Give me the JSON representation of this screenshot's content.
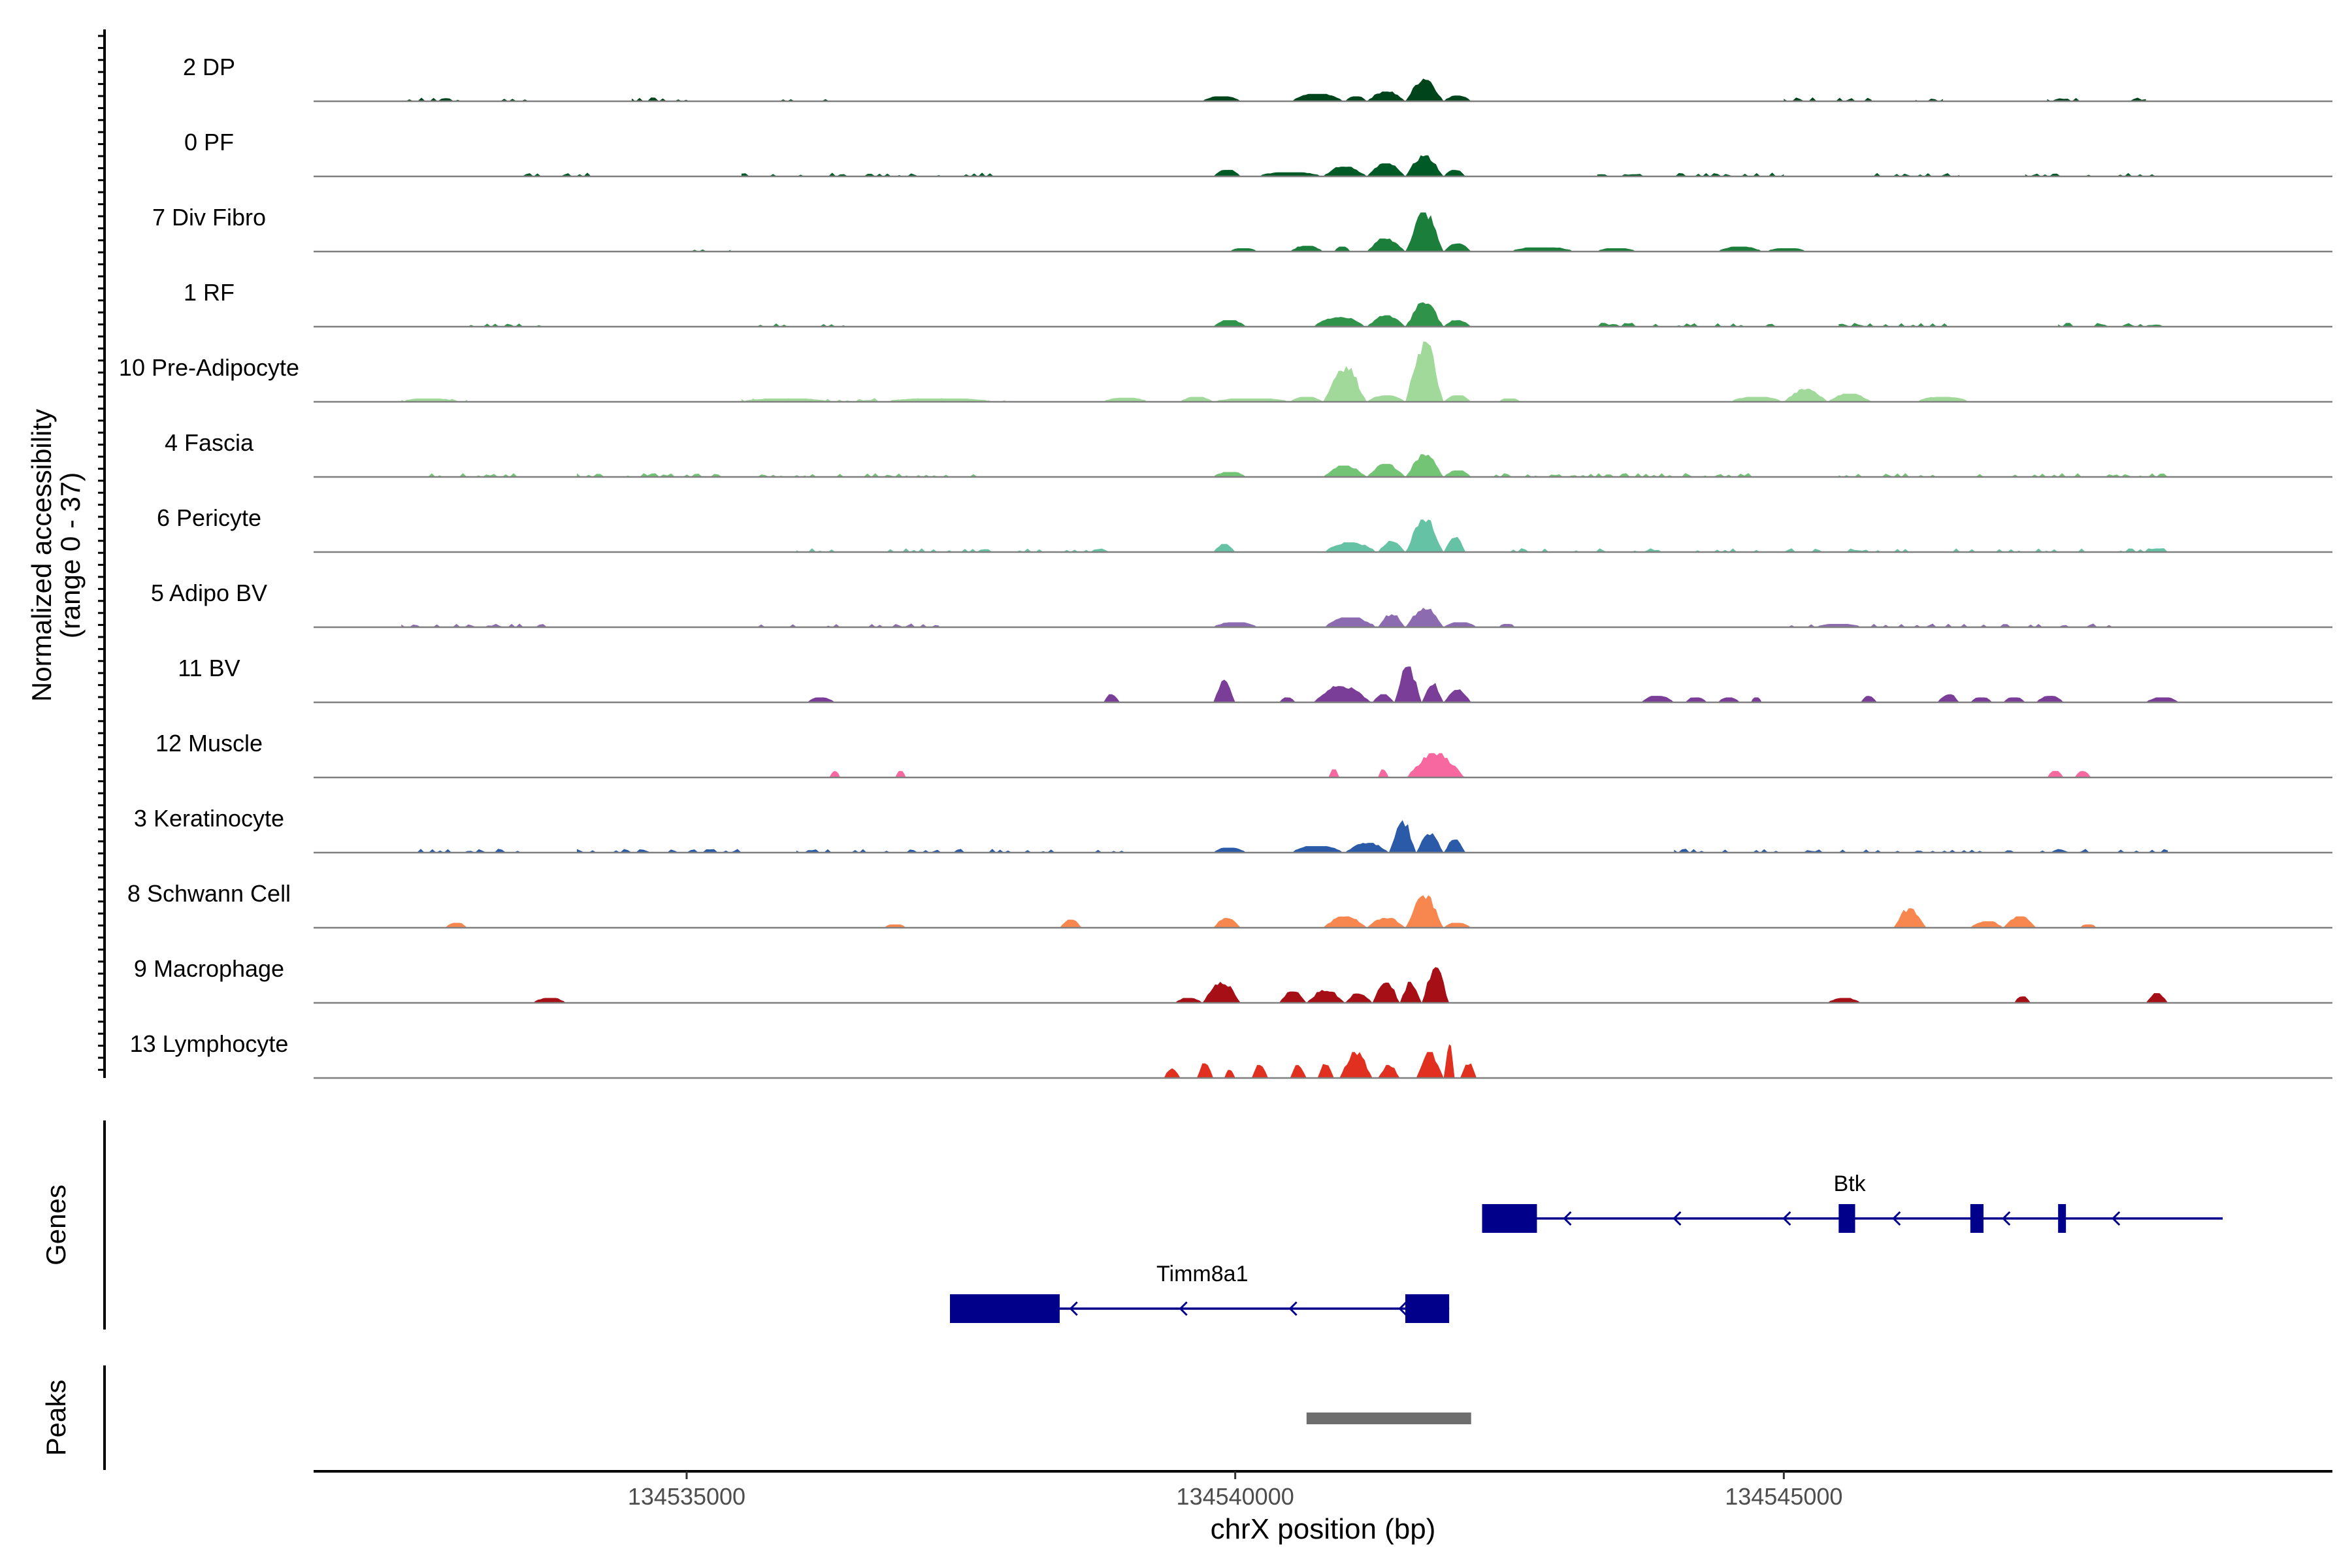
{
  "chart_data": {
    "type": "area",
    "title": "",
    "chromosome": "chrX",
    "xlabel": "chrX position (bp)",
    "ylabel": "Normalized accessibility",
    "ylabel_range": "(range 0 - 37)",
    "y_range": [
      0,
      37
    ],
    "x_range": [
      134531600,
      134550000
    ],
    "x_ticks": [
      134535000,
      134540000,
      134545000
    ],
    "x_tick_labels": [
      "134535000",
      "134540000",
      "134545000"
    ],
    "genes_label": "Genes",
    "peaks_label": "Peaks",
    "tracks": [
      {
        "name": "2 DP",
        "color": "#00441b",
        "peaks": [
          [
            134539700,
            134540050,
            3
          ],
          [
            134540500,
            134541000,
            4.5
          ],
          [
            134541000,
            134541200,
            3
          ],
          [
            134541200,
            134541550,
            6
          ],
          [
            134541550,
            134541900,
            14
          ],
          [
            134541900,
            134542150,
            3.5
          ]
        ],
        "noise": [
          [
            134532400,
            134532950
          ],
          [
            134533300,
            134533600
          ],
          [
            134534500,
            134535100
          ],
          [
            134535600,
            134536300
          ],
          [
            134545000,
            134545300
          ],
          [
            134545400,
            134545800
          ],
          [
            134546200,
            134546450
          ],
          [
            134547400,
            134547700
          ],
          [
            134548000,
            134548300
          ]
        ],
        "scale": 1
      },
      {
        "name": "0 PF",
        "color": "#005a25",
        "peaks": [
          [
            134539800,
            134540050,
            4
          ],
          [
            134540200,
            134540800,
            2.5
          ],
          [
            134540800,
            134541200,
            6
          ],
          [
            134541200,
            134541550,
            8
          ],
          [
            134541550,
            134541900,
            13
          ],
          [
            134541900,
            134542100,
            4
          ]
        ],
        "noise": [
          [
            134533500,
            134534200
          ],
          [
            134535500,
            134537800
          ],
          [
            134543300,
            134545000
          ],
          [
            134545600,
            134546600
          ],
          [
            134547200,
            134548500
          ]
        ],
        "scale": 1
      },
      {
        "name": "7 Div Fibro",
        "color": "#1c7e3b",
        "peaks": [
          [
            134539950,
            134540200,
            2
          ],
          [
            134540500,
            134540800,
            3.5
          ],
          [
            134540900,
            134541050,
            3
          ],
          [
            134541200,
            134541550,
            8
          ],
          [
            134541550,
            134541900,
            24
          ],
          [
            134541900,
            134542150,
            5
          ],
          [
            134542500,
            134543100,
            2.5
          ],
          [
            134543300,
            134543650,
            2
          ],
          [
            134544400,
            134544800,
            3
          ],
          [
            134544850,
            134545200,
            2
          ]
        ],
        "noise": [
          [
            134535000,
            134535400
          ]
        ],
        "scale": 1
      },
      {
        "name": "1 RF",
        "color": "#2f9349",
        "peaks": [
          [
            134539800,
            134540100,
            4
          ],
          [
            134540700,
            134541200,
            6
          ],
          [
            134541200,
            134541550,
            7
          ],
          [
            134541550,
            134541900,
            15
          ],
          [
            134541900,
            134542150,
            4
          ]
        ],
        "noise": [
          [
            134533000,
            134533800
          ],
          [
            134535600,
            134536500
          ],
          [
            134543300,
            134545000
          ],
          [
            134545500,
            134546500
          ],
          [
            134547500,
            134548500
          ]
        ],
        "scale": 1
      },
      {
        "name": "10 Pre-Adipocyte",
        "color": "#a1d99b",
        "peaks": [
          [
            134532400,
            134532900,
            2
          ],
          [
            134535500,
            134536300,
            2
          ],
          [
            134536800,
            134537800,
            2
          ],
          [
            134538800,
            134539200,
            2.5
          ],
          [
            134539500,
            134539800,
            3
          ],
          [
            134539800,
            134540500,
            2
          ],
          [
            134540500,
            134540800,
            3
          ],
          [
            134540800,
            134541200,
            22
          ],
          [
            134541200,
            134541550,
            4
          ],
          [
            134541550,
            134541900,
            37
          ],
          [
            134541900,
            134542150,
            4
          ],
          [
            134542400,
            134542600,
            2
          ],
          [
            134544500,
            134545000,
            3
          ],
          [
            134545000,
            134545400,
            8
          ],
          [
            134545400,
            134545800,
            5
          ],
          [
            134546200,
            134546700,
            3
          ]
        ],
        "noise": [
          [
            134532400,
            134533000
          ],
          [
            134535500,
            134538000
          ]
        ],
        "scale": 1
      },
      {
        "name": "4 Fascia",
        "color": "#74c476",
        "peaks": [
          [
            134539800,
            134540100,
            3
          ],
          [
            134540800,
            134541200,
            7
          ],
          [
            134541200,
            134541550,
            8
          ],
          [
            134541550,
            134541900,
            14
          ],
          [
            134541900,
            134542150,
            4
          ]
        ],
        "noise": [
          [
            134532500,
            134533600
          ],
          [
            134534000,
            134537900
          ],
          [
            134542200,
            134545000
          ],
          [
            134545500,
            134548500
          ]
        ],
        "scale": 1
      },
      {
        "name": "6 Pericyte",
        "color": "#66c2a4",
        "peaks": [
          [
            134539800,
            134540000,
            5
          ],
          [
            134540800,
            134541300,
            6
          ],
          [
            134541300,
            134541550,
            7
          ],
          [
            134541550,
            134541900,
            20
          ],
          [
            134541900,
            134542100,
            10
          ]
        ],
        "noise": [
          [
            134536000,
            134539000
          ],
          [
            134542500,
            134548500
          ]
        ],
        "scale": 1
      },
      {
        "name": "5 Adipo BV",
        "color": "#8c6bb1",
        "peaks": [
          [
            134539800,
            134540200,
            3
          ],
          [
            134540800,
            134541300,
            6
          ],
          [
            134541300,
            134541550,
            8
          ],
          [
            134541550,
            134541900,
            12
          ],
          [
            134541900,
            134542200,
            3
          ],
          [
            134542400,
            134542550,
            2
          ],
          [
            134545300,
            134545700,
            2
          ]
        ],
        "noise": [
          [
            134532400,
            134533800
          ],
          [
            134535500,
            134537300
          ],
          [
            134545000,
            134548000
          ]
        ],
        "scale": 1
      },
      {
        "name": "11 BV",
        "color": "#7a3d98",
        "peaks": [
          [
            134536100,
            134536350,
            3
          ],
          [
            134538800,
            134538950,
            5
          ],
          [
            134539800,
            134540000,
            14
          ],
          [
            134540400,
            134540550,
            3
          ],
          [
            134540700,
            134541250,
            10
          ],
          [
            134541250,
            134541450,
            5
          ],
          [
            134541450,
            134541700,
            22
          ],
          [
            134541700,
            134541900,
            12
          ],
          [
            134541900,
            134542150,
            8
          ],
          [
            134543700,
            134544000,
            4
          ],
          [
            134544100,
            134544300,
            3
          ],
          [
            134544400,
            134544600,
            3
          ],
          [
            134544700,
            134544800,
            3
          ],
          [
            134545700,
            134545850,
            4
          ],
          [
            134546400,
            134546600,
            5
          ],
          [
            134546700,
            134546900,
            3
          ],
          [
            134547000,
            134547200,
            3
          ],
          [
            134547300,
            134547550,
            4
          ],
          [
            134548300,
            134548600,
            3
          ]
        ],
        "noise": [],
        "scale": 1
      },
      {
        "name": "12 Muscle",
        "color": "#f768a1",
        "peaks": [
          [
            134536300,
            134536400,
            4
          ],
          [
            134536900,
            134537000,
            4
          ],
          [
            134540850,
            134540950,
            5
          ],
          [
            134541300,
            134541400,
            5
          ],
          [
            134541550,
            134542100,
            15
          ],
          [
            134547400,
            134547550,
            4
          ],
          [
            134547650,
            134547800,
            4
          ]
        ],
        "noise": [],
        "scale": 1
      },
      {
        "name": "3 Keratinocyte",
        "color": "#2b5ba8",
        "peaks": [
          [
            134539800,
            134540100,
            3
          ],
          [
            134540500,
            134541000,
            4
          ],
          [
            134541000,
            134541400,
            6
          ],
          [
            134541400,
            134541650,
            20
          ],
          [
            134541650,
            134541900,
            12
          ],
          [
            134541900,
            134542100,
            8
          ]
        ],
        "noise": [
          [
            134532400,
            134533600
          ],
          [
            134534000,
            134535500
          ],
          [
            134536000,
            134539000
          ],
          [
            134544000,
            134548500
          ]
        ],
        "scale": 1
      },
      {
        "name": "8 Schwann Cell",
        "color": "#f7874f",
        "peaks": [
          [
            134532800,
            134533000,
            3
          ],
          [
            134536800,
            134537000,
            2
          ],
          [
            134538400,
            134538600,
            5
          ],
          [
            134539800,
            134540050,
            6
          ],
          [
            134540800,
            134541200,
            7
          ],
          [
            134541200,
            134541550,
            6
          ],
          [
            134541550,
            134541900,
            20
          ],
          [
            134541900,
            134542150,
            3
          ],
          [
            134546000,
            134546300,
            12
          ],
          [
            134546700,
            134547000,
            4
          ],
          [
            134547000,
            134547300,
            7
          ],
          [
            134547700,
            134547850,
            2
          ]
        ],
        "noise": [],
        "scale": 1
      },
      {
        "name": "9 Macrophage",
        "color": "#a50f15",
        "peaks": [
          [
            134533600,
            134533900,
            3
          ],
          [
            134539450,
            134539700,
            3
          ],
          [
            134539700,
            134540050,
            13
          ],
          [
            134540400,
            134540650,
            7
          ],
          [
            134540650,
            134541000,
            8
          ],
          [
            134541000,
            134541250,
            6
          ],
          [
            134541250,
            134541500,
            14
          ],
          [
            134541500,
            134541700,
            13
          ],
          [
            134541700,
            134541950,
            22
          ],
          [
            134545400,
            134545700,
            3
          ],
          [
            134547100,
            134547250,
            4
          ],
          [
            134548300,
            134548500,
            6
          ]
        ],
        "noise": [],
        "scale": 1
      },
      {
        "name": "13 Lymphocyte",
        "color": "#e1301f",
        "peaks": [
          [
            134539350,
            134539500,
            6
          ],
          [
            134539650,
            134539800,
            9
          ],
          [
            134539900,
            134540000,
            5
          ],
          [
            134540150,
            134540300,
            8
          ],
          [
            134540500,
            134540650,
            8
          ],
          [
            134540750,
            134540900,
            9
          ],
          [
            134540950,
            134541250,
            16
          ],
          [
            134541300,
            134541500,
            8
          ],
          [
            134541650,
            134541900,
            16
          ],
          [
            134541900,
            134542000,
            22
          ],
          [
            134542050,
            134542200,
            9
          ]
        ],
        "noise": [],
        "scale": 1
      }
    ],
    "genes": [
      {
        "name": "Btk",
        "strand": "-",
        "start": 134542250,
        "end": 134549000,
        "exons": [
          [
            134542250,
            134542750
          ],
          [
            134545500,
            134545650
          ],
          [
            134546700,
            134546820
          ],
          [
            134547500,
            134547560
          ]
        ],
        "arrows": [
          134543000,
          134544000,
          134545000,
          134546000,
          134547000,
          134548000
        ]
      },
      {
        "name": "Timm8a1",
        "strand": "-",
        "start": 134537400,
        "end": 134541950,
        "exons": [
          [
            134537400,
            134538400
          ],
          [
            134541550,
            134541950
          ]
        ],
        "arrows": [
          134538500,
          134539500,
          134540500,
          134541500
        ]
      }
    ],
    "peaks_regions": [
      [
        134540650,
        134542150
      ]
    ]
  }
}
